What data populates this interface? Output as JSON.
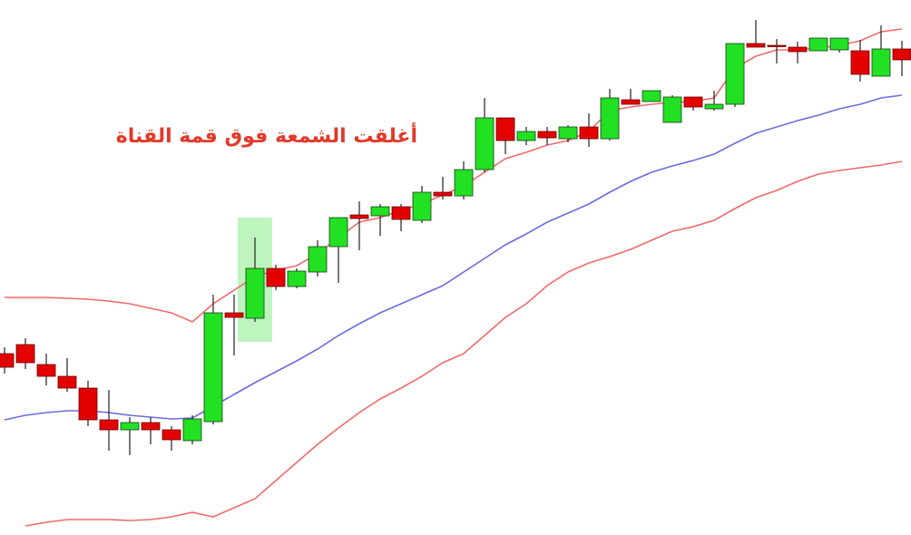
{
  "chart_data": {
    "type": "candlestick",
    "annotation": "أغلقت الشمعة فوق قمة القناة",
    "ylim": [
      0,
      590
    ],
    "up_color": "#22e022",
    "down_color": "#e30000",
    "border_color": "#1a3a1a",
    "categories": [
      null,
      null,
      null,
      null,
      null,
      null,
      null,
      null,
      null,
      null,
      null,
      null,
      null,
      null,
      null,
      null,
      null,
      null,
      null,
      null,
      null,
      null,
      null,
      null,
      null,
      null,
      null,
      null,
      null,
      null,
      null,
      null,
      null,
      null,
      null,
      null,
      null,
      null,
      null,
      null,
      null,
      null,
      null,
      null
    ],
    "open": [
      200,
      210,
      188,
      175,
      162,
      127,
      116,
      124,
      116,
      104,
      125,
      245,
      239,
      294,
      274,
      290,
      318,
      353,
      352,
      362,
      347,
      378,
      374,
      403,
      460,
      435,
      445,
      437,
      450,
      437,
      480,
      478,
      455,
      483,
      470,
      475,
      542,
      540,
      538,
      534,
      535,
      534,
      506,
      536
    ],
    "high": [
      207,
      217,
      200,
      195,
      170,
      160,
      130,
      130,
      120,
      132,
      265,
      265,
      328,
      298,
      294,
      325,
      350,
      368,
      365,
      365,
      385,
      395,
      412,
      482,
      460,
      450,
      450,
      452,
      465,
      492,
      492,
      490,
      485,
      483,
      490,
      542,
      568,
      547,
      544,
      548,
      548,
      546,
      562,
      545
    ],
    "low": [
      178,
      183,
      165,
      158,
      120,
      93,
      88,
      100,
      93,
      100,
      122,
      198,
      235,
      270,
      272,
      285,
      278,
      314,
      330,
      335,
      344,
      370,
      370,
      400,
      420,
      430,
      430,
      433,
      428,
      435,
      475,
      478,
      455,
      468,
      468,
      472,
      538,
      520,
      520,
      534,
      532,
      500,
      506,
      506
    ],
    "close": [
      185,
      190,
      175,
      162,
      127,
      116,
      124,
      116,
      105,
      128,
      245,
      240,
      294,
      274,
      291,
      318,
      350,
      349,
      362,
      348,
      378,
      374,
      403,
      460,
      435,
      445,
      438,
      450,
      437,
      482,
      475,
      490,
      483,
      472,
      475,
      542,
      538,
      539,
      533,
      548,
      548,
      508,
      536,
      524
    ],
    "series": [
      {
        "color": "#f06a6a",
        "values": [
          262,
          262,
          262,
          261,
          260,
          258,
          255,
          250,
          245,
          235,
          255,
          270,
          285,
          292,
          297,
          310,
          328,
          345,
          350,
          358,
          365,
          375,
          385,
          400,
          415,
          422,
          430,
          435,
          445,
          468,
          472,
          475,
          477,
          478,
          482,
          515,
          528,
          535,
          535,
          537,
          540,
          545,
          555,
          558
        ]
      },
      {
        "color": "#6b6be0",
        "values": [
          127,
          132,
          135,
          137,
          137,
          135,
          132,
          130,
          128,
          129,
          142,
          155,
          168,
          180,
          192,
          205,
          220,
          233,
          245,
          255,
          265,
          275,
          290,
          305,
          320,
          332,
          345,
          355,
          365,
          378,
          390,
          400,
          407,
          413,
          420,
          432,
          443,
          450,
          457,
          463,
          470,
          475,
          482,
          485
        ]
      },
      {
        "color": "#f06a6a",
        "values": [
          null,
          10,
          14,
          17,
          17,
          17,
          16,
          17,
          20,
          25,
          20,
          30,
          40,
          60,
          80,
          100,
          118,
          135,
          150,
          162,
          175,
          190,
          200,
          220,
          240,
          255,
          275,
          290,
          300,
          307,
          315,
          325,
          335,
          340,
          347,
          360,
          372,
          380,
          390,
          398,
          402,
          405,
          408,
          412
        ]
      }
    ]
  }
}
